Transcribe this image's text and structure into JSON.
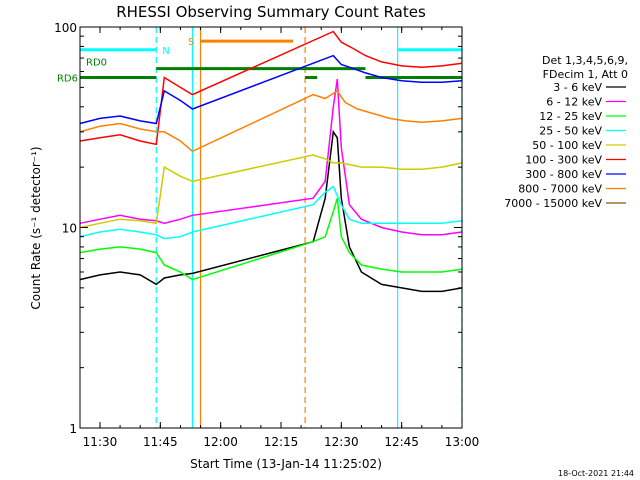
{
  "chart_data": {
    "type": "line",
    "title": "RHESSI Observing Summary Count Rates",
    "xlabel": "Start Time (13-Jan-14 11:25:02)",
    "ylabel": "Count Rate (s⁻¹ detector⁻¹)",
    "yscale": "log",
    "ylim": [
      1,
      100
    ],
    "xlim": [
      "11:25:02",
      "13:00:00"
    ],
    "x_ticks": [
      "11:30",
      "11:45",
      "12:00",
      "12:15",
      "12:30",
      "12:45",
      "13:00"
    ],
    "y_ticks": [
      "1",
      "10",
      "100"
    ],
    "legend_header": [
      "Det 1,3,4,5,6,9,",
      "FDecim 1, Att 0"
    ],
    "legend_position": "right",
    "series": [
      {
        "name": "3 - 6 keV",
        "color": "#000000",
        "points": [
          [
            "11:25",
            5.5
          ],
          [
            "11:30",
            5.8
          ],
          [
            "11:35",
            6.0
          ],
          [
            "11:40",
            5.8
          ],
          [
            "11:44",
            5.2
          ],
          [
            "11:46",
            5.6
          ],
          [
            "11:50",
            5.8
          ],
          [
            "11:53",
            5.9
          ],
          [
            "12:23",
            8.5
          ],
          [
            "12:26",
            14
          ],
          [
            "12:28",
            30
          ],
          [
            "12:29",
            28
          ],
          [
            "12:30",
            14
          ],
          [
            "12:32",
            8
          ],
          [
            "12:35",
            6
          ],
          [
            "12:40",
            5.2
          ],
          [
            "12:45",
            5.0
          ],
          [
            "12:50",
            4.8
          ],
          [
            "12:55",
            4.8
          ],
          [
            "13:00",
            5.0
          ]
        ]
      },
      {
        "name": "6 - 12 keV",
        "color": "#ff00ff",
        "points": [
          [
            "11:25",
            10.5
          ],
          [
            "11:30",
            11
          ],
          [
            "11:35",
            11.5
          ],
          [
            "11:40",
            11
          ],
          [
            "11:44",
            10.8
          ],
          [
            "11:46",
            10.5
          ],
          [
            "11:50",
            11
          ],
          [
            "11:53",
            11.5
          ],
          [
            "12:23",
            14
          ],
          [
            "12:26",
            17
          ],
          [
            "12:28",
            40
          ],
          [
            "12:29",
            55
          ],
          [
            "12:30",
            25
          ],
          [
            "12:32",
            13
          ],
          [
            "12:35",
            11
          ],
          [
            "12:40",
            10
          ],
          [
            "12:45",
            9.5
          ],
          [
            "12:50",
            9.2
          ],
          [
            "12:55",
            9.2
          ],
          [
            "13:00",
            9.5
          ]
        ]
      },
      {
        "name": "12 - 25 keV",
        "color": "#00ff00",
        "points": [
          [
            "11:25",
            7.5
          ],
          [
            "11:30",
            7.8
          ],
          [
            "11:35",
            8.0
          ],
          [
            "11:40",
            7.8
          ],
          [
            "11:44",
            7.5
          ],
          [
            "11:46",
            6.5
          ],
          [
            "11:50",
            6.0
          ],
          [
            "11:53",
            5.5
          ],
          [
            "12:23",
            8.5
          ],
          [
            "12:26",
            9
          ],
          [
            "12:28",
            12
          ],
          [
            "12:29",
            14
          ],
          [
            "12:30",
            9
          ],
          [
            "12:32",
            7.5
          ],
          [
            "12:35",
            6.5
          ],
          [
            "12:40",
            6.2
          ],
          [
            "12:45",
            6.0
          ],
          [
            "12:50",
            6.0
          ],
          [
            "12:55",
            6.0
          ],
          [
            "13:00",
            6.2
          ]
        ]
      },
      {
        "name": "25 - 50 keV",
        "color": "#00ffff",
        "points": [
          [
            "11:25",
            9
          ],
          [
            "11:30",
            9.5
          ],
          [
            "11:35",
            9.8
          ],
          [
            "11:40",
            9.5
          ],
          [
            "11:44",
            9.2
          ],
          [
            "11:46",
            8.8
          ],
          [
            "11:50",
            9.0
          ],
          [
            "11:53",
            9.5
          ],
          [
            "12:23",
            13
          ],
          [
            "12:26",
            15
          ],
          [
            "12:28",
            16
          ],
          [
            "12:30",
            13
          ],
          [
            "12:32",
            11
          ],
          [
            "12:35",
            10.5
          ],
          [
            "12:40",
            10.5
          ],
          [
            "12:45",
            10.5
          ],
          [
            "12:50",
            10.5
          ],
          [
            "12:55",
            10.5
          ],
          [
            "13:00",
            10.8
          ]
        ]
      },
      {
        "name": "50 - 100 keV",
        "color": "#cccc00",
        "points": [
          [
            "11:25",
            10
          ],
          [
            "11:30",
            10.5
          ],
          [
            "11:35",
            11
          ],
          [
            "11:40",
            10.8
          ],
          [
            "11:44",
            10.5
          ],
          [
            "11:46",
            20
          ],
          [
            "11:50",
            18
          ],
          [
            "11:53",
            17
          ],
          [
            "12:23",
            23
          ],
          [
            "12:26",
            22
          ],
          [
            "12:28",
            21
          ],
          [
            "12:30",
            21
          ],
          [
            "12:35",
            20
          ],
          [
            "12:40",
            20
          ],
          [
            "12:45",
            19.5
          ],
          [
            "12:50",
            19.5
          ],
          [
            "12:55",
            20
          ],
          [
            "13:00",
            21
          ]
        ]
      },
      {
        "name": "100 - 300 keV",
        "color": "#ff0000",
        "points": [
          [
            "11:25",
            27
          ],
          [
            "11:30",
            28
          ],
          [
            "11:35",
            29
          ],
          [
            "11:40",
            27
          ],
          [
            "11:44",
            26
          ],
          [
            "11:46",
            56
          ],
          [
            "11:50",
            50
          ],
          [
            "11:53",
            46
          ],
          [
            "12:28",
            95
          ],
          [
            "12:30",
            84
          ],
          [
            "12:33",
            78
          ],
          [
            "12:36",
            72
          ],
          [
            "12:40",
            67
          ],
          [
            "12:45",
            64
          ],
          [
            "12:50",
            63
          ],
          [
            "12:55",
            64
          ],
          [
            "13:00",
            66
          ]
        ]
      },
      {
        "name": "300 - 800 keV",
        "color": "#0000ff",
        "points": [
          [
            "11:25",
            33
          ],
          [
            "11:30",
            35
          ],
          [
            "11:35",
            36
          ],
          [
            "11:40",
            34
          ],
          [
            "11:44",
            33
          ],
          [
            "11:46",
            48
          ],
          [
            "11:50",
            43
          ],
          [
            "11:53",
            39
          ],
          [
            "12:28",
            72
          ],
          [
            "12:30",
            65
          ],
          [
            "12:33",
            62
          ],
          [
            "12:36",
            59
          ],
          [
            "12:40",
            56
          ],
          [
            "12:45",
            54
          ],
          [
            "12:50",
            53
          ],
          [
            "12:55",
            53
          ],
          [
            "13:00",
            54
          ]
        ]
      },
      {
        "name": "800 - 7000 keV",
        "color": "#ff8000",
        "points": [
          [
            "11:25",
            30
          ],
          [
            "11:30",
            32
          ],
          [
            "11:35",
            33
          ],
          [
            "11:40",
            31
          ],
          [
            "11:44",
            30
          ],
          [
            "11:46",
            30
          ],
          [
            "11:50",
            27
          ],
          [
            "11:53",
            24
          ],
          [
            "12:23",
            46
          ],
          [
            "12:26",
            44
          ],
          [
            "12:29",
            48
          ],
          [
            "12:31",
            42
          ],
          [
            "12:34",
            39
          ],
          [
            "12:38",
            37
          ],
          [
            "12:42",
            35
          ],
          [
            "12:46",
            34
          ],
          [
            "12:50",
            33.5
          ],
          [
            "12:55",
            34
          ],
          [
            "13:00",
            35
          ]
        ]
      },
      {
        "name": "7000 - 15000 keV",
        "color": "#806000",
        "points": []
      }
    ],
    "flags": [
      {
        "label": "N",
        "color": "#00ffff",
        "segments": [
          [
            "11:25",
            "11:44"
          ],
          [
            "12:44",
            "13:00"
          ]
        ],
        "level": 77
      },
      {
        "label": "S",
        "color": "#ff8000",
        "segments": [
          [
            "11:55",
            "12:18"
          ]
        ],
        "level": 85
      },
      {
        "label": "RD0",
        "color": "#008000",
        "segments": [
          [
            "11:44",
            "12:36"
          ]
        ],
        "level": 62
      },
      {
        "label": "RD6",
        "color": "#008000",
        "segments": [
          [
            "11:25",
            "11:44"
          ],
          [
            "12:21",
            "12:24"
          ],
          [
            "12:36",
            "13:00"
          ]
        ],
        "level": 56
      }
    ],
    "vlines": [
      {
        "time": "11:44",
        "color": "#00ffff",
        "style": "dashed"
      },
      {
        "time": "11:53",
        "color": "#00ffff",
        "style": "solid"
      },
      {
        "time": "11:55",
        "color": "#ff8000",
        "style": "solid"
      },
      {
        "time": "12:21",
        "color": "#ff8000",
        "style": "dashed"
      },
      {
        "time": "12:44",
        "color": "#00ffff",
        "style": "solid"
      },
      {
        "time": "13:00",
        "color": "#00ffff",
        "style": "dashed"
      }
    ]
  },
  "footer_timestamp": "18-Oct-2021 21:44"
}
